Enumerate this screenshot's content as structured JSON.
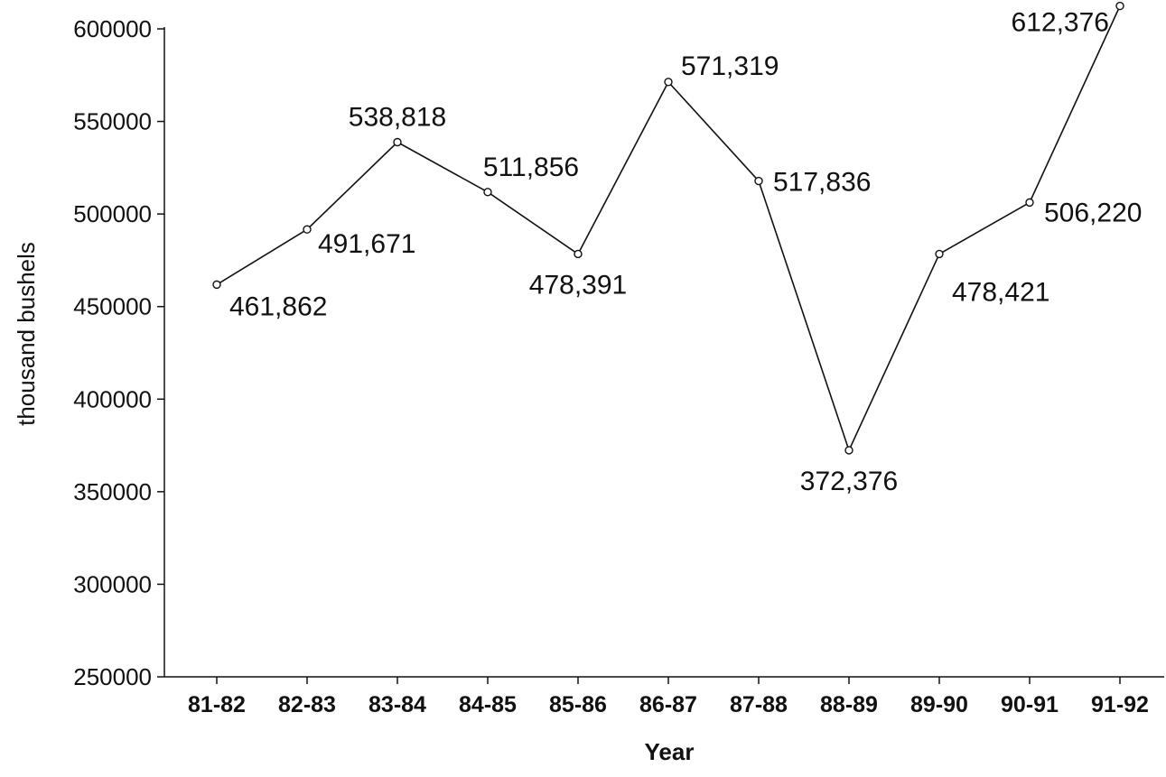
{
  "chart_data": {
    "type": "line",
    "title": "",
    "xlabel": "Year",
    "ylabel": "thousand bushels",
    "ylim": [
      250000,
      600000
    ],
    "yticks": [
      250000,
      300000,
      350000,
      400000,
      450000,
      500000,
      550000,
      600000
    ],
    "ytick_labels": [
      "250000",
      "300000",
      "350000",
      "400000",
      "450000",
      "500000",
      "550000",
      "600000"
    ],
    "grid": false,
    "legend": "none",
    "categories": [
      "81-82",
      "82-83",
      "83-84",
      "84-85",
      "85-86",
      "86-87",
      "87-88",
      "88-89",
      "89-90",
      "90-91",
      "91-92"
    ],
    "values": [
      461862,
      491671,
      538818,
      511856,
      478391,
      571319,
      517836,
      372376,
      478421,
      506220,
      612376
    ],
    "data_labels": [
      "461,862",
      "491,671",
      "538,818",
      "511,856",
      "478,391",
      "571,319",
      "517,836",
      "372,376",
      "478,421",
      "506,220",
      "612,376"
    ]
  },
  "colors": {
    "line": "#111111",
    "background": "#ffffff"
  }
}
